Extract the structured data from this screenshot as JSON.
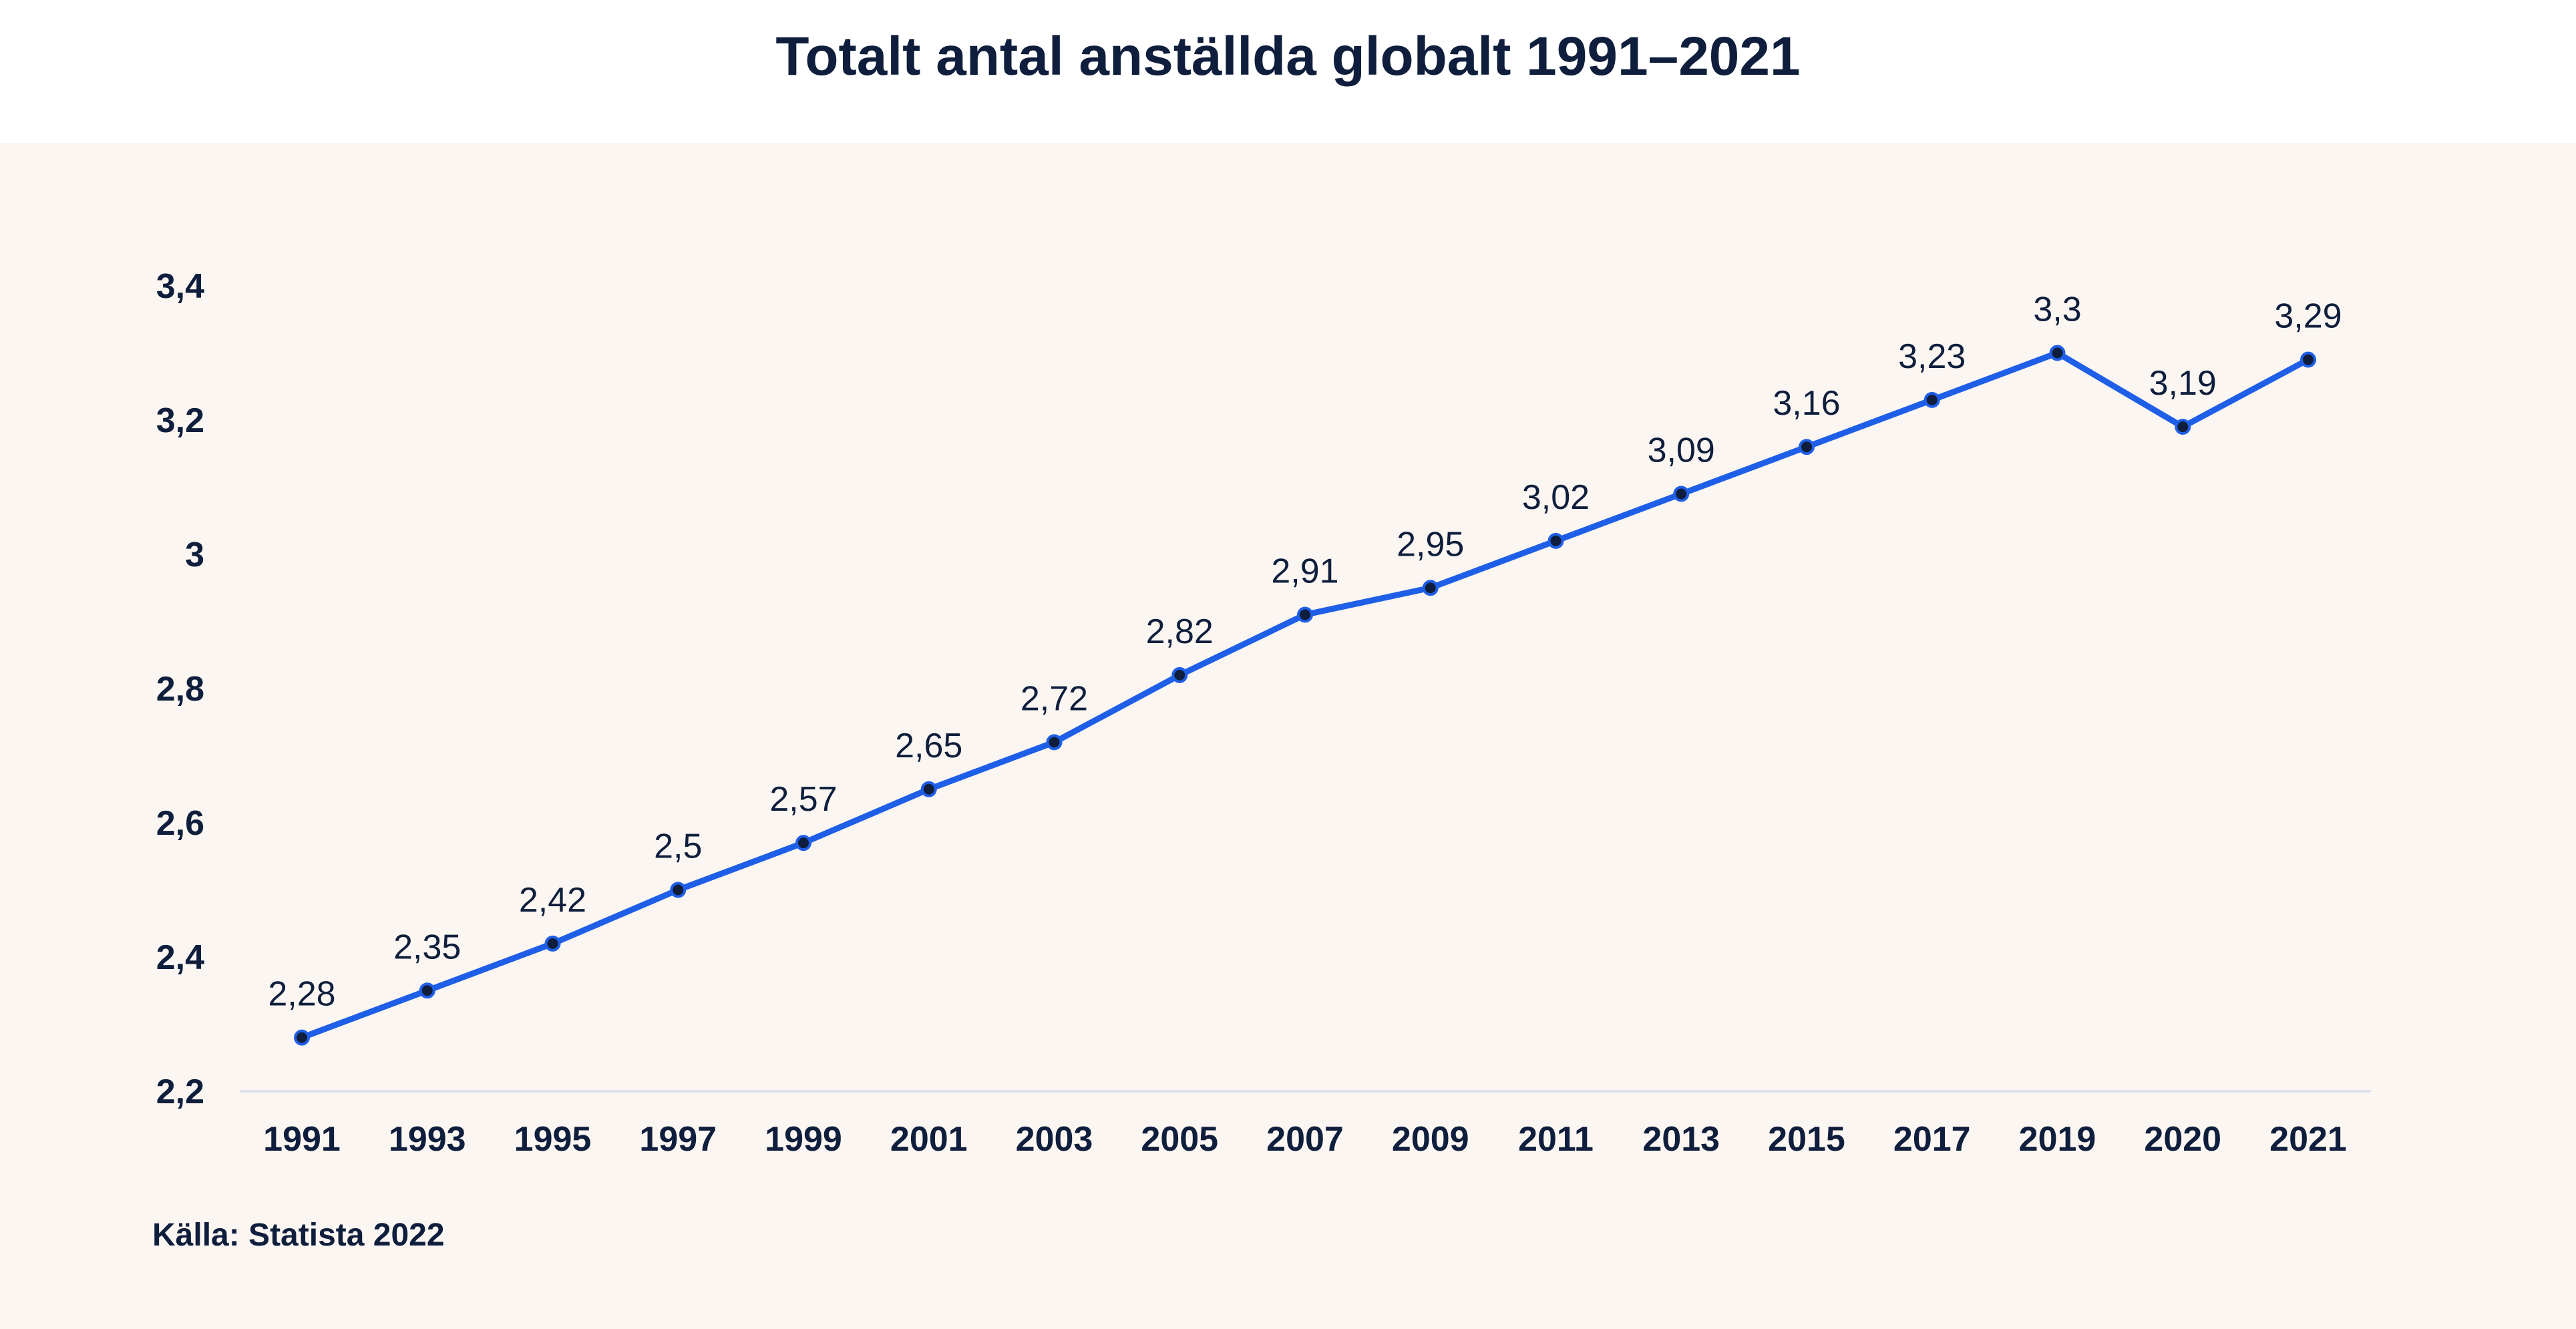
{
  "chart_data": {
    "type": "line",
    "title": "Totalt antal anställda globalt 1991–2021",
    "source": "Källa: Statista 2022",
    "x": [
      "1991",
      "1993",
      "1995",
      "1997",
      "1999",
      "2001",
      "2003",
      "2005",
      "2007",
      "2009",
      "2011",
      "2013",
      "2015",
      "2017",
      "2019",
      "2020",
      "2021"
    ],
    "series": [
      {
        "values": [
          2.28,
          2.35,
          2.42,
          2.5,
          2.57,
          2.65,
          2.72,
          2.82,
          2.91,
          2.95,
          3.02,
          3.09,
          3.16,
          3.23,
          3.3,
          3.19,
          3.29
        ],
        "labels": [
          "2,28",
          "2,35",
          "2,42",
          "2,5",
          "2,57",
          "2,65",
          "2,72",
          "2,82",
          "2,91",
          "2,95",
          "3,02",
          "3,09",
          "3,16",
          "3,23",
          "3,3",
          "3,19",
          "3,29"
        ]
      }
    ],
    "y_ticks": [
      2.2,
      2.4,
      2.6,
      2.8,
      3.0,
      3.2,
      3.4
    ],
    "y_tick_labels": [
      "2,2",
      "2,4",
      "2,6",
      "2,8",
      "3",
      "3,2",
      "3,4"
    ],
    "ylim": [
      2.2,
      3.4
    ],
    "grid": false,
    "legend": "none",
    "colors": {
      "line": "#1f5fe8",
      "marker": "#0f1e3c",
      "panel_background": "#fbf6f1",
      "axis_line": "#d6dced",
      "text": "#0f1e3c"
    }
  }
}
